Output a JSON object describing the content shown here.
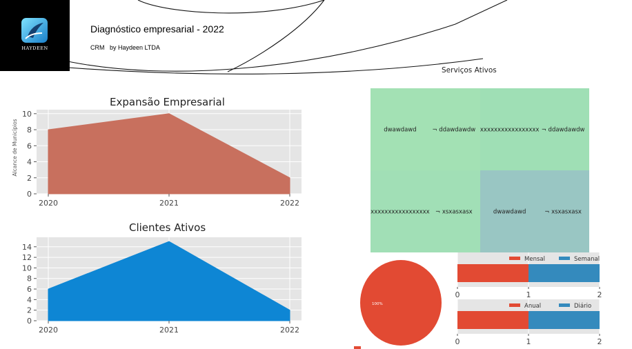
{
  "header": {
    "logo_text": "HAYDEEN",
    "title": "Diagnóstico empresarial - 2022",
    "subtitle": "CRM   by Haydeen LTDA"
  },
  "chart_data": [
    {
      "type": "area",
      "title": "Expansão Empresarial",
      "xlabel": "",
      "ylabel": "Alcance de Municípios",
      "x": [
        "2020",
        "2021",
        "2022"
      ],
      "values": [
        8,
        10,
        2
      ],
      "yticks": [
        "0",
        "2",
        "4",
        "6",
        "8",
        "10"
      ],
      "ylim": [
        0,
        10.5
      ],
      "color": "#c8705e",
      "grid": true
    },
    {
      "type": "area",
      "title": "Clientes Ativos",
      "xlabel": "",
      "ylabel": "",
      "x": [
        "2020",
        "2021",
        "2022"
      ],
      "values": [
        6,
        15,
        2
      ],
      "yticks": [
        "0",
        "2",
        "4",
        "6",
        "8",
        "10",
        "12",
        "14"
      ],
      "ylim": [
        0,
        15.8
      ],
      "color": "#0e86d4",
      "grid": true
    },
    {
      "type": "treemap",
      "title": "Serviços Ativos",
      "cells": [
        {
          "labels": [
            "dwawdawd",
            "¬ ddawdawdw"
          ],
          "color": "#a3e1b4"
        },
        {
          "labels": [
            "xxxxxxxxxxxxxxxxx",
            "¬ ddawdawdw"
          ],
          "color": "#9fdfb5"
        },
        {
          "labels": [
            "xxxxxxxxxxxxxxxxx",
            "¬ xsxasxasx"
          ],
          "color": "#a1dfb6"
        },
        {
          "labels": [
            "dwawdawd",
            "¬ xsxasxasx"
          ],
          "color": "#99c6c3"
        }
      ]
    },
    {
      "type": "pie",
      "title": "",
      "slices": [
        {
          "label": "100%",
          "value": 100,
          "color": "#e24a33"
        }
      ]
    },
    {
      "type": "bar",
      "orientation": "horizontal",
      "stacked": true,
      "series": [
        {
          "name": "Mensal",
          "values": [
            1
          ],
          "color": "#e24a33"
        },
        {
          "name": "Semanal",
          "values": [
            1
          ],
          "color": "#348abd"
        }
      ],
      "xticks": [
        "0",
        "1",
        "2"
      ],
      "xlim": [
        0,
        2
      ],
      "legend": "top-right"
    },
    {
      "type": "bar",
      "orientation": "horizontal",
      "stacked": true,
      "series": [
        {
          "name": "Anual",
          "values": [
            1
          ],
          "color": "#e24a33"
        },
        {
          "name": "Diário",
          "values": [
            1
          ],
          "color": "#348abd"
        }
      ],
      "xticks": [
        "0",
        "1",
        "2"
      ],
      "xlim": [
        0,
        2
      ],
      "legend": "top-right"
    }
  ]
}
